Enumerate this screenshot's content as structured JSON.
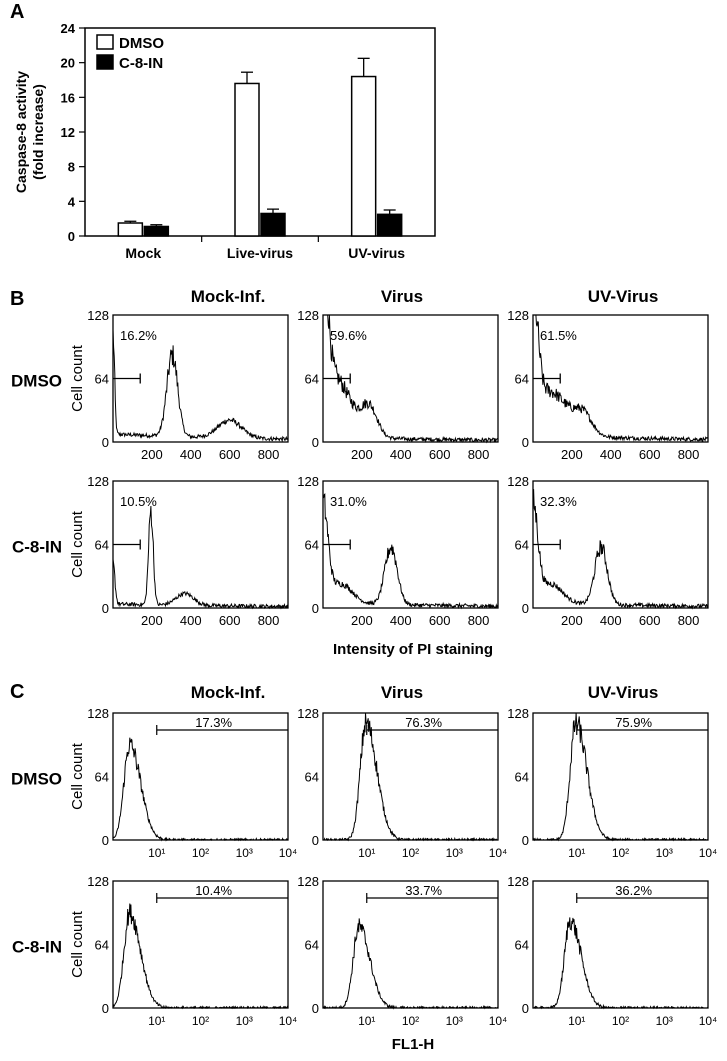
{
  "chart_data": [
    {
      "panel": "A",
      "type": "bar",
      "ylabel": [
        "Caspase-8 activity",
        "(fold increase)"
      ],
      "ylim": [
        0,
        24
      ],
      "yticks": [
        "0",
        "4",
        "8",
        "12",
        "16",
        "20",
        "24"
      ],
      "categories": [
        "Mock",
        "Live-virus",
        "UV-virus"
      ],
      "series": [
        {
          "name": "DMSO",
          "values": [
            1.5,
            17.6,
            18.4
          ],
          "errors": [
            0.2,
            1.3,
            2.1
          ],
          "color": "#ffffff"
        },
        {
          "name": "C-8-IN",
          "values": [
            1.1,
            2.6,
            2.5
          ],
          "errors": [
            0.2,
            0.5,
            0.5
          ],
          "color": "#000000"
        }
      ],
      "legend": "top-left"
    },
    {
      "panel": "B",
      "type": "histogram",
      "columns": [
        "Mock-Inf.",
        "Virus",
        "UV-Virus"
      ],
      "rows": [
        "DMSO",
        "C-8-IN"
      ],
      "ylabel": "Cell count",
      "xlabel": "Intensity of PI staining",
      "ylim": [
        0,
        128
      ],
      "yticks": [
        "0",
        "64",
        "128"
      ],
      "xlim": [
        0,
        900
      ],
      "xticks": [
        "200",
        "400",
        "600",
        "800"
      ],
      "marker_level": 64,
      "marker_range": [
        0,
        140
      ],
      "histograms": [
        {
          "row": "DMSO",
          "column": "Mock-Inf.",
          "percent": "16.2%",
          "peaks": [
            [
              0,
              100,
              8
            ],
            [
              305,
              82,
              28
            ],
            [
              600,
              18,
              60
            ]
          ],
          "base": 8
        },
        {
          "row": "DMSO",
          "column": "Virus",
          "percent": "59.6%",
          "peaks": [
            [
              0,
              125,
              25
            ],
            [
              50,
              62,
              90
            ],
            [
              240,
              28,
              40
            ]
          ],
          "base": 5
        },
        {
          "row": "DMSO",
          "column": "UV-Virus",
          "percent": "61.5%",
          "peaks": [
            [
              0,
              110,
              25
            ],
            [
              80,
              45,
              100
            ],
            [
              260,
              18,
              45
            ]
          ],
          "base": 7
        },
        {
          "row": "C-8-IN",
          "column": "Mock-Inf.",
          "percent": "10.5%",
          "peaks": [
            [
              0,
              40,
              10
            ],
            [
              195,
              95,
              12
            ],
            [
              370,
              12,
              45
            ]
          ],
          "base": 4
        },
        {
          "row": "C-8-IN",
          "column": "Virus",
          "percent": "31.0%",
          "peaks": [
            [
              0,
              95,
              25
            ],
            [
              90,
              20,
              60
            ],
            [
              350,
              58,
              32
            ]
          ],
          "base": 5
        },
        {
          "row": "C-8-IN",
          "column": "UV-Virus",
          "percent": "32.3%",
          "peaks": [
            [
              0,
              95,
              25
            ],
            [
              90,
              20,
              60
            ],
            [
              350,
              58,
              32
            ]
          ],
          "base": 5
        }
      ]
    },
    {
      "panel": "C",
      "type": "histogram",
      "columns": [
        "Mock-Inf.",
        "Virus",
        "UV-Virus"
      ],
      "rows": [
        "DMSO",
        "C-8-IN"
      ],
      "ylabel": "Cell count",
      "xlabel": "FL1-H",
      "x_scale": "log",
      "ylim": [
        0,
        128
      ],
      "yticks": [
        "0",
        "64",
        "128"
      ],
      "xticks": [
        "10¹",
        "10²",
        "10³",
        "10⁴"
      ],
      "histograms": [
        {
          "row": "DMSO",
          "column": "Mock-Inf.",
          "percent": "17.3%",
          "peak_log": 0.38,
          "height": 96
        },
        {
          "row": "DMSO",
          "column": "Virus",
          "percent": "76.3%",
          "peak_log": 0.98,
          "height": 118
        },
        {
          "row": "DMSO",
          "column": "UV-Virus",
          "percent": "75.9%",
          "peak_log": 0.98,
          "height": 118
        },
        {
          "row": "C-8-IN",
          "column": "Mock-Inf.",
          "percent": "10.4%",
          "peak_log": 0.38,
          "height": 96
        },
        {
          "row": "C-8-IN",
          "column": "Virus",
          "percent": "33.7%",
          "peak_log": 0.82,
          "height": 82
        },
        {
          "row": "C-8-IN",
          "column": "UV-Virus",
          "percent": "36.2%",
          "peak_log": 0.85,
          "height": 88
        }
      ]
    }
  ]
}
